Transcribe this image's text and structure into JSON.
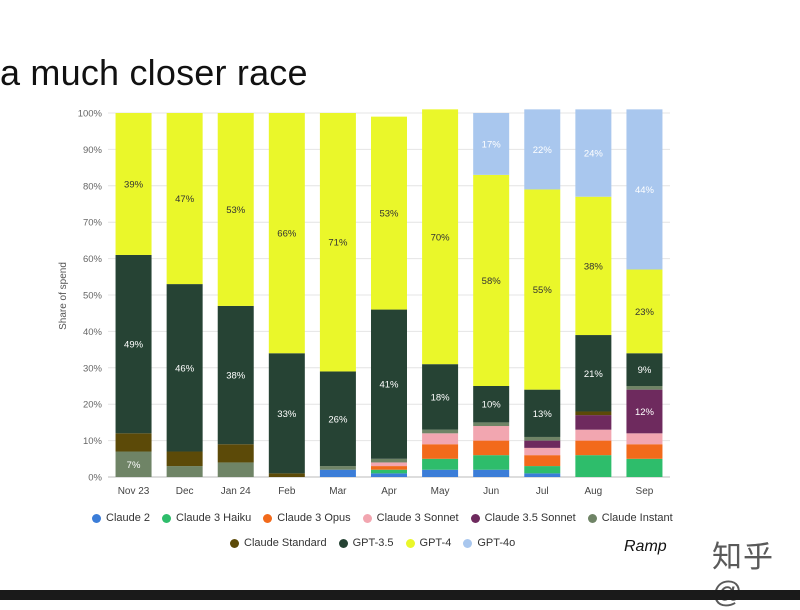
{
  "slide": {
    "title": "a much closer race",
    "source": "Ramp",
    "watermark": "知乎 @"
  },
  "colors": {
    "Claude 2": "#3b7dd8",
    "Claude 3 Haiku": "#2ebd6b",
    "Claude 3 Opus": "#f26a1b",
    "Claude 3 Sonnet": "#f2a6b0",
    "Claude 3.5 Sonnet": "#6e2a5e",
    "Claude Instant": "#6f8466",
    "Claude Standard": "#5c4a08",
    "GPT-3.5": "#264334",
    "GPT-4": "#eaf72a",
    "GPT-4o": "#a9c7ee"
  },
  "chart_data": {
    "type": "bar",
    "stacked": true,
    "title": "",
    "xlabel": "",
    "ylabel": "Share of spend",
    "ylim": [
      0,
      100
    ],
    "yticks": [
      "0%",
      "10%",
      "20%",
      "30%",
      "40%",
      "50%",
      "60%",
      "70%",
      "80%",
      "90%",
      "100%"
    ],
    "grid": true,
    "legend_position": "bottom",
    "categories": [
      "Nov 23",
      "Dec",
      "Jan 24",
      "Feb",
      "Mar",
      "Apr",
      "May",
      "Jun",
      "Jul",
      "Aug",
      "Sep"
    ],
    "series": [
      {
        "name": "Claude 2",
        "values": [
          0,
          0,
          0,
          0,
          2,
          1,
          2,
          2,
          1,
          0,
          0
        ]
      },
      {
        "name": "Claude 3 Haiku",
        "values": [
          0,
          0,
          0,
          0,
          0,
          1,
          3,
          4,
          2,
          6,
          5
        ]
      },
      {
        "name": "Claude 3 Opus",
        "values": [
          0,
          0,
          0,
          0,
          0,
          1,
          4,
          4,
          3,
          4,
          4
        ]
      },
      {
        "name": "Claude 3 Sonnet",
        "values": [
          0,
          0,
          0,
          0,
          0,
          1,
          3,
          4,
          2,
          3,
          3
        ]
      },
      {
        "name": "Claude 3.5 Sonnet",
        "values": [
          0,
          0,
          0,
          0,
          0,
          0,
          0,
          0,
          2,
          4,
          12
        ]
      },
      {
        "name": "Claude Instant",
        "values": [
          7,
          3,
          4,
          0,
          1,
          1,
          1,
          1,
          1,
          0,
          1
        ]
      },
      {
        "name": "Claude Standard",
        "values": [
          5,
          4,
          5,
          1,
          0,
          0,
          0,
          0,
          0,
          1,
          0
        ]
      },
      {
        "name": "GPT-3.5",
        "values": [
          49,
          46,
          38,
          33,
          26,
          41,
          18,
          10,
          13,
          21,
          9
        ]
      },
      {
        "name": "GPT-4",
        "values": [
          39,
          47,
          53,
          66,
          71,
          53,
          70,
          58,
          55,
          38,
          23
        ]
      },
      {
        "name": "GPT-4o",
        "values": [
          0,
          0,
          0,
          0,
          0,
          0,
          0,
          17,
          22,
          24,
          44
        ]
      }
    ],
    "data_labels": [
      {
        "category": "Nov 23",
        "series": "Claude Instant",
        "text": "7%"
      },
      {
        "category": "Nov 23",
        "series": "GPT-3.5",
        "text": "49%"
      },
      {
        "category": "Nov 23",
        "series": "GPT-4",
        "text": "39%"
      },
      {
        "category": "Dec",
        "series": "GPT-3.5",
        "text": "46%"
      },
      {
        "category": "Dec",
        "series": "GPT-4",
        "text": "47%"
      },
      {
        "category": "Jan 24",
        "series": "GPT-3.5",
        "text": "38%"
      },
      {
        "category": "Jan 24",
        "series": "GPT-4",
        "text": "53%"
      },
      {
        "category": "Feb",
        "series": "GPT-3.5",
        "text": "33%"
      },
      {
        "category": "Feb",
        "series": "GPT-4",
        "text": "66%"
      },
      {
        "category": "Mar",
        "series": "GPT-3.5",
        "text": "26%"
      },
      {
        "category": "Mar",
        "series": "GPT-4",
        "text": "71%"
      },
      {
        "category": "Apr",
        "series": "GPT-3.5",
        "text": "41%"
      },
      {
        "category": "Apr",
        "series": "GPT-4",
        "text": "53%"
      },
      {
        "category": "May",
        "series": "GPT-3.5",
        "text": "18%"
      },
      {
        "category": "May",
        "series": "GPT-4",
        "text": "70%"
      },
      {
        "category": "Jun",
        "series": "GPT-3.5",
        "text": "10%"
      },
      {
        "category": "Jun",
        "series": "GPT-4",
        "text": "58%"
      },
      {
        "category": "Jun",
        "series": "GPT-4o",
        "text": "17%"
      },
      {
        "category": "Jul",
        "series": "GPT-3.5",
        "text": "13%"
      },
      {
        "category": "Jul",
        "series": "GPT-4",
        "text": "55%"
      },
      {
        "category": "Jul",
        "series": "GPT-4o",
        "text": "22%"
      },
      {
        "category": "Aug",
        "series": "GPT-3.5",
        "text": "21%"
      },
      {
        "category": "Aug",
        "series": "GPT-4",
        "text": "38%"
      },
      {
        "category": "Aug",
        "series": "GPT-4o",
        "text": "24%"
      },
      {
        "category": "Sep",
        "series": "Claude 3.5 Sonnet",
        "text": "12%"
      },
      {
        "category": "Sep",
        "series": "GPT-3.5",
        "text": "9%"
      },
      {
        "category": "Sep",
        "series": "GPT-4",
        "text": "23%"
      },
      {
        "category": "Sep",
        "series": "GPT-4o",
        "text": "44%"
      }
    ]
  },
  "legend": {
    "row1": [
      "Claude 2",
      "Claude 3 Haiku",
      "Claude 3 Opus",
      "Claude 3 Sonnet",
      "Claude 3.5 Sonnet",
      "Claude Instant"
    ],
    "row2": [
      "Claude Standard",
      "GPT-3.5",
      "GPT-4",
      "GPT-4o"
    ]
  }
}
